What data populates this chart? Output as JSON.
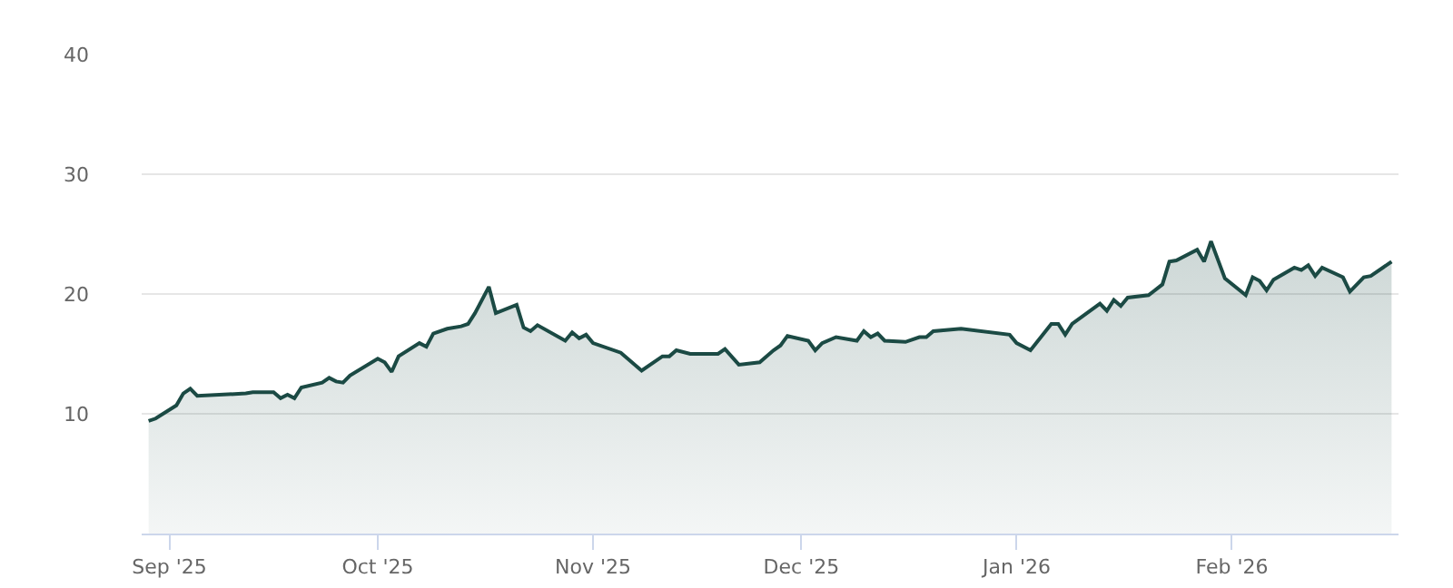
{
  "chart_data": {
    "type": "area",
    "x": [
      "2025-08-29",
      "2025-08-30",
      "2025-09-02",
      "2025-09-03",
      "2025-09-04",
      "2025-09-05",
      "2025-09-12",
      "2025-09-13",
      "2025-09-16",
      "2025-09-17",
      "2025-09-18",
      "2025-09-19",
      "2025-09-20",
      "2025-09-23",
      "2025-09-24",
      "2025-09-25",
      "2025-09-26",
      "2025-09-27",
      "2025-10-01",
      "2025-10-02",
      "2025-10-03",
      "2025-10-04",
      "2025-10-07",
      "2025-10-08",
      "2025-10-09",
      "2025-10-11",
      "2025-10-13",
      "2025-10-14",
      "2025-10-15",
      "2025-10-17",
      "2025-10-18",
      "2025-10-21",
      "2025-10-22",
      "2025-10-23",
      "2025-10-24",
      "2025-10-28",
      "2025-10-29",
      "2025-10-30",
      "2025-10-31",
      "2025-11-01",
      "2025-11-05",
      "2025-11-08",
      "2025-11-11",
      "2025-11-12",
      "2025-11-13",
      "2025-11-15",
      "2025-11-19",
      "2025-11-20",
      "2025-11-22",
      "2025-11-25",
      "2025-11-27",
      "2025-11-28",
      "2025-11-29",
      "2025-12-02",
      "2025-12-03",
      "2025-12-04",
      "2025-12-06",
      "2025-12-09",
      "2025-12-10",
      "2025-12-11",
      "2025-12-12",
      "2025-12-13",
      "2025-12-16",
      "2025-12-18",
      "2025-12-19",
      "2025-12-20",
      "2025-12-24",
      "2025-12-31",
      "2026-01-01",
      "2026-01-03",
      "2026-01-06",
      "2026-01-07",
      "2026-01-08",
      "2026-01-09",
      "2026-01-13",
      "2026-01-14",
      "2026-01-15",
      "2026-01-16",
      "2026-01-17",
      "2026-01-20",
      "2026-01-22",
      "2026-01-23",
      "2026-01-24",
      "2026-01-27",
      "2026-01-28",
      "2026-01-29",
      "2026-01-31",
      "2026-02-03",
      "2026-02-04",
      "2026-02-05",
      "2026-02-06",
      "2026-02-07",
      "2026-02-10",
      "2026-02-11",
      "2026-02-12",
      "2026-02-13",
      "2026-02-14",
      "2026-02-17",
      "2026-02-18",
      "2026-02-20",
      "2026-02-21",
      "2026-02-24"
    ],
    "series": [
      {
        "color": "#1b4a44",
        "values": [
          9.4,
          9.6,
          10.7,
          11.7,
          12.1,
          11.5,
          11.7,
          11.8,
          11.8,
          11.3,
          11.6,
          11.3,
          12.2,
          12.6,
          13.0,
          12.7,
          12.6,
          13.2,
          14.6,
          14.3,
          13.5,
          14.8,
          15.9,
          15.6,
          16.7,
          17.1,
          17.3,
          17.5,
          18.4,
          20.6,
          18.4,
          19.1,
          17.2,
          16.9,
          17.4,
          16.1,
          16.8,
          16.3,
          16.6,
          15.9,
          15.1,
          13.6,
          14.8,
          14.8,
          15.3,
          15.0,
          15.0,
          15.4,
          14.1,
          14.3,
          15.3,
          15.7,
          16.5,
          16.1,
          15.3,
          15.9,
          16.4,
          16.1,
          16.9,
          16.4,
          16.7,
          16.1,
          16.0,
          16.4,
          16.4,
          16.9,
          17.1,
          16.6,
          15.9,
          15.3,
          17.5,
          17.5,
          16.6,
          17.5,
          19.2,
          18.6,
          19.5,
          19.0,
          19.7,
          19.9,
          20.8,
          22.7,
          22.8,
          23.7,
          22.7,
          24.4,
          21.3,
          19.9,
          21.4,
          21.1,
          20.3,
          21.2,
          22.2,
          22.0,
          22.4,
          21.5,
          22.2,
          21.4,
          20.2,
          21.4,
          21.5,
          22.7
        ]
      }
    ],
    "xlim": [
      "2025-08-28",
      "2026-02-25"
    ],
    "xticks": [
      {
        "value": "2025-09-01",
        "label": "Sep '25"
      },
      {
        "value": "2025-10-01",
        "label": "Oct '25"
      },
      {
        "value": "2025-11-01",
        "label": "Nov '25"
      },
      {
        "value": "2025-12-01",
        "label": "Dec '25"
      },
      {
        "value": "2026-01-01",
        "label": "Jan '26"
      },
      {
        "value": "2026-02-01",
        "label": "Feb '26"
      }
    ],
    "ylim": [
      0,
      40
    ],
    "yticks": [
      10,
      20,
      30,
      40
    ],
    "grid": "y",
    "marker": "none",
    "line_style": "solid"
  }
}
